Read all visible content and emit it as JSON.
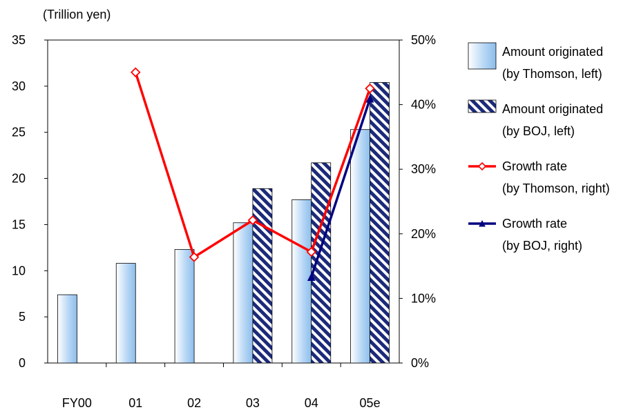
{
  "chart_data": {
    "type": "bar",
    "unit_label": "(Trillion yen)",
    "categories": [
      "FY00",
      "01",
      "02",
      "03",
      "04",
      "05e"
    ],
    "left_axis": {
      "ylim": [
        0,
        35
      ],
      "ticks": [
        "0",
        "5",
        "10",
        "15",
        "20",
        "25",
        "30",
        "35"
      ]
    },
    "right_axis": {
      "ylim": [
        0,
        50
      ],
      "ticks": [
        "0%",
        "10%",
        "20%",
        "30%",
        "40%",
        "50%"
      ]
    },
    "grid": false,
    "legend_position": "right",
    "series": [
      {
        "name": "Amount originated",
        "name_line2": "(by Thomson, left)",
        "type": "bar",
        "axis": "left",
        "values": [
          7.4,
          10.8,
          12.3,
          15.2,
          17.7,
          25.3
        ],
        "color": "#a9cdf2"
      },
      {
        "name": "Amount originated",
        "name_line2": "(by BOJ, left)",
        "type": "bar",
        "axis": "left",
        "values": [
          null,
          null,
          null,
          18.9,
          21.7,
          30.4
        ],
        "color": "#1c2a7a"
      },
      {
        "name": "Growth rate",
        "name_line2": "(by Thomson, right)",
        "type": "line",
        "axis": "right",
        "values": [
          null,
          45,
          16.4,
          22.1,
          17.2,
          42.5
        ],
        "color": "#ff0000",
        "marker": "diamond"
      },
      {
        "name": "Growth rate",
        "name_line2": "(by BOJ, right)",
        "type": "line",
        "axis": "right",
        "values": [
          null,
          null,
          null,
          null,
          13.3,
          40.9
        ],
        "color": "#000080",
        "marker": "triangle"
      }
    ]
  }
}
